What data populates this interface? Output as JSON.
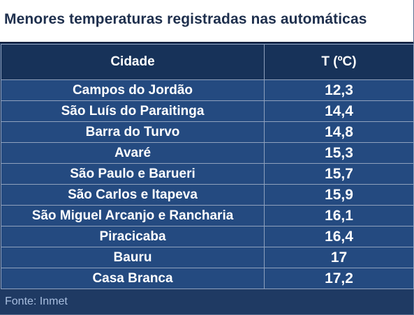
{
  "title": "Menores temperaturas registradas nas automáticas",
  "table": {
    "columns": [
      "Cidade",
      "T (ºC)"
    ],
    "rows": [
      {
        "city": "Campos do Jordão",
        "temp": "12,3"
      },
      {
        "city": "São Luís do Paraitinga",
        "temp": "14,4"
      },
      {
        "city": "Barra do Turvo",
        "temp": "14,8"
      },
      {
        "city": "Avaré",
        "temp": "15,3"
      },
      {
        "city": "São Paulo e Barueri",
        "temp": "15,7"
      },
      {
        "city": "São Carlos e Itapeva",
        "temp": "15,9"
      },
      {
        "city": "São Miguel Arcanjo e Rancharia",
        "temp": "16,1"
      },
      {
        "city": "Piracicaba",
        "temp": "16,4"
      },
      {
        "city": "Bauru",
        "temp": "17"
      },
      {
        "city": "Casa Branca",
        "temp": "17,2"
      }
    ]
  },
  "source": "Fonte: Inmet",
  "colors": {
    "background": "#1f3a63",
    "header": "#173259",
    "row": "#244a80",
    "title_text": "#1e2f4d"
  }
}
